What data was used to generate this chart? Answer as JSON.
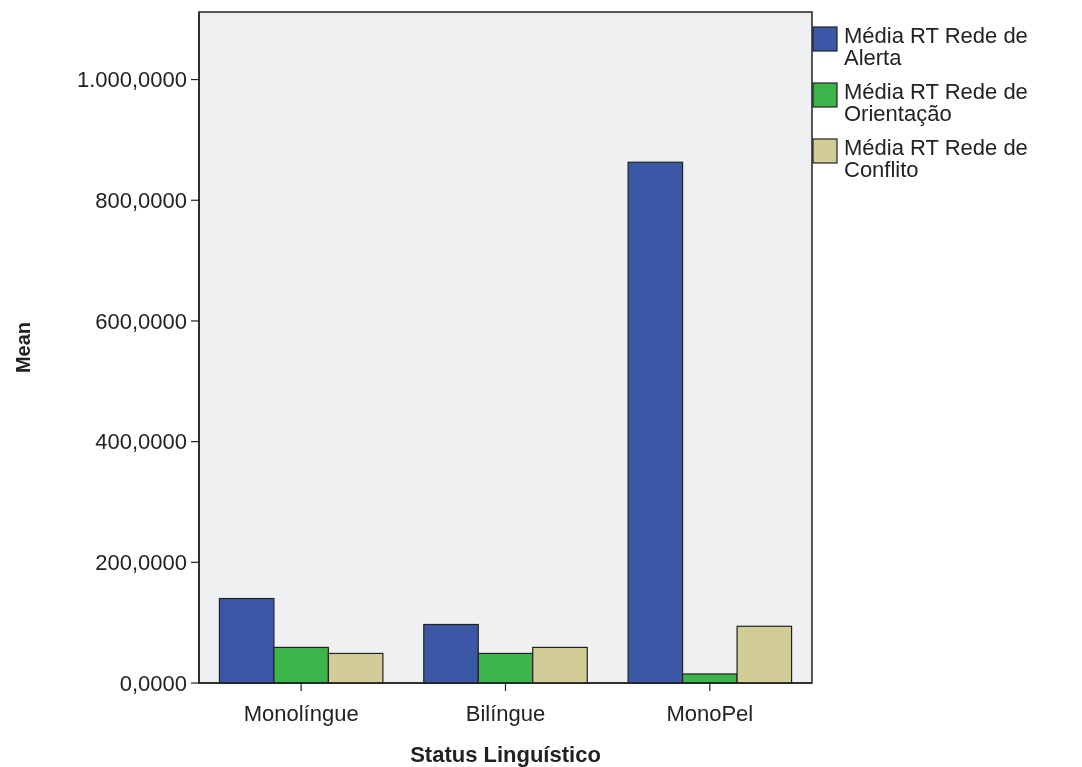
{
  "chart_data": {
    "type": "bar",
    "xlabel": "Status Linguístico",
    "ylabel": "Mean",
    "categories": [
      "Monolíngue",
      "Bilíngue",
      "MonoPel"
    ],
    "series": [
      {
        "name": "Média RT Rede de Alerta",
        "color": "#3b58a6",
        "values": [
          140,
          97,
          863
        ]
      },
      {
        "name": "Média RT Rede de Orientação",
        "color": "#3bb54a",
        "values": [
          59,
          49,
          15
        ]
      },
      {
        "name": "Média RT Rede de Conflito",
        "color": "#d2cd97",
        "values": [
          49,
          59,
          94
        ]
      }
    ],
    "ylim": [
      0,
      1112
    ],
    "yticks": [
      {
        "value": 0,
        "label": "0,0000"
      },
      {
        "value": 200,
        "label": "200,0000"
      },
      {
        "value": 400,
        "label": "400,0000"
      },
      {
        "value": 600,
        "label": "600,0000"
      },
      {
        "value": 800,
        "label": "800,0000"
      },
      {
        "value": 1000,
        "label": "1.000,0000"
      }
    ],
    "grid": false,
    "legend": "top right"
  }
}
